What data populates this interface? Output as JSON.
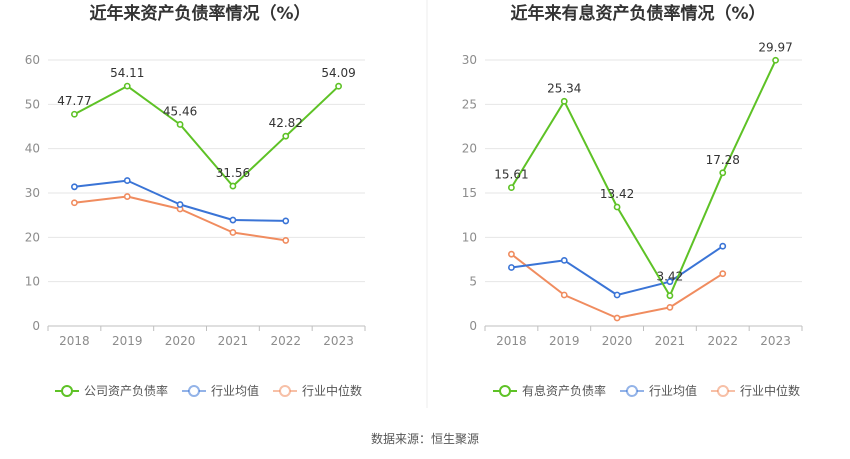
{
  "source": "数据来源：恒生聚源",
  "colors": {
    "company": "#5ec226",
    "industry_avg": "#3a74d6",
    "industry_median": "#f08c5f",
    "grid": "#e6e6e6",
    "axis": "#bfbfbf"
  },
  "chart_data": [
    {
      "type": "line",
      "title": "近年来资产负债率情况（%）",
      "categories": [
        "2018",
        "2019",
        "2020",
        "2021",
        "2022",
        "2023"
      ],
      "ylim": [
        0,
        60
      ],
      "yticks": [
        0,
        10,
        20,
        30,
        40,
        50,
        60
      ],
      "grid": true,
      "legend_position": "bottom",
      "series": [
        {
          "name": "公司资产负债率",
          "color": "#5ec226",
          "labeled": true,
          "values": [
            47.77,
            54.11,
            45.46,
            31.56,
            42.82,
            54.09
          ],
          "labels": [
            "47.77",
            "54.11",
            "45.46",
            "31.56",
            "42.82",
            "54.09"
          ]
        },
        {
          "name": "行业均值",
          "color": "#3a74d6",
          "labeled": false,
          "values": [
            31.4,
            32.8,
            27.4,
            23.9,
            23.7,
            null
          ]
        },
        {
          "name": "行业中位数",
          "color": "#f08c5f",
          "labeled": false,
          "values": [
            27.8,
            29.2,
            26.4,
            21.1,
            19.3,
            null
          ]
        }
      ]
    },
    {
      "type": "line",
      "title": "近年来有息资产负债率情况（%）",
      "categories": [
        "2018",
        "2019",
        "2020",
        "2021",
        "2022",
        "2023"
      ],
      "ylim": [
        0,
        30
      ],
      "yticks": [
        0,
        5,
        10,
        15,
        20,
        25,
        30
      ],
      "grid": true,
      "legend_position": "bottom",
      "series": [
        {
          "name": "有息资产负债率",
          "color": "#5ec226",
          "labeled": true,
          "values": [
            15.61,
            25.34,
            13.42,
            3.42,
            17.28,
            29.97
          ],
          "labels": [
            "15.61",
            "25.34",
            "13.42",
            "3.42",
            "17.28",
            "29.97"
          ]
        },
        {
          "name": "行业均值",
          "color": "#3a74d6",
          "labeled": false,
          "values": [
            6.6,
            7.4,
            3.5,
            5.0,
            9.0,
            null
          ]
        },
        {
          "name": "行业中位数",
          "color": "#f08c5f",
          "labeled": false,
          "values": [
            8.1,
            3.5,
            0.9,
            2.1,
            5.9,
            null
          ]
        }
      ]
    }
  ]
}
